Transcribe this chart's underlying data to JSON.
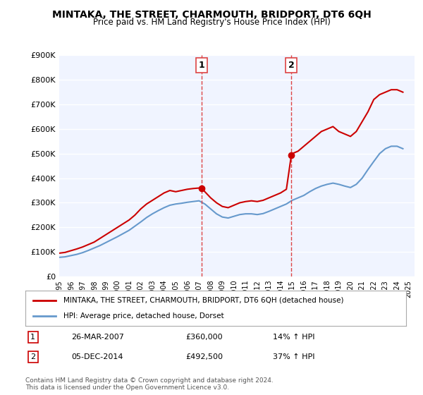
{
  "title": "MINTAKA, THE STREET, CHARMOUTH, BRIDPORT, DT6 6QH",
  "subtitle": "Price paid vs. HM Land Registry's House Price Index (HPI)",
  "background_color": "#ffffff",
  "plot_bg_color": "#f0f4ff",
  "grid_color": "#ffffff",
  "ylabel": "",
  "xlabel": "",
  "ylim": [
    0,
    900000
  ],
  "yticks": [
    0,
    100000,
    200000,
    300000,
    400000,
    500000,
    600000,
    700000,
    800000,
    900000
  ],
  "ytick_labels": [
    "£0",
    "£100K",
    "£200K",
    "£300K",
    "£400K",
    "£500K",
    "£600K",
    "£700K",
    "£800K",
    "£900K"
  ],
  "xlim_start": 1995.0,
  "xlim_end": 2025.5,
  "xtick_years": [
    1995,
    1996,
    1997,
    1998,
    1999,
    2000,
    2001,
    2002,
    2003,
    2004,
    2005,
    2006,
    2007,
    2008,
    2009,
    2010,
    2011,
    2012,
    2013,
    2014,
    2015,
    2016,
    2017,
    2018,
    2019,
    2020,
    2021,
    2022,
    2023,
    2024,
    2025
  ],
  "sale1_x": 2007.23,
  "sale1_y": 360000,
  "sale1_label": "1",
  "sale1_date": "26-MAR-2007",
  "sale1_price": "£360,000",
  "sale1_hpi": "14% ↑ HPI",
  "sale2_x": 2014.92,
  "sale2_y": 492500,
  "sale2_label": "2",
  "sale2_date": "05-DEC-2014",
  "sale2_price": "£492,500",
  "sale2_hpi": "37% ↑ HPI",
  "red_line_color": "#cc0000",
  "blue_line_color": "#6699cc",
  "vline_color": "#dd4444",
  "marker_color": "#cc0000",
  "legend_line1": "MINTAKA, THE STREET, CHARMOUTH, BRIDPORT, DT6 6QH (detached house)",
  "legend_line2": "HPI: Average price, detached house, Dorset",
  "footer": "Contains HM Land Registry data © Crown copyright and database right 2024.\nThis data is licensed under the Open Government Licence v3.0.",
  "red_x": [
    1995.0,
    1995.5,
    1996.0,
    1996.5,
    1997.0,
    1997.5,
    1998.0,
    1998.5,
    1999.0,
    1999.5,
    2000.0,
    2000.5,
    2001.0,
    2001.5,
    2002.0,
    2002.5,
    2003.0,
    2003.5,
    2004.0,
    2004.5,
    2005.0,
    2005.5,
    2006.0,
    2006.5,
    2007.0,
    2007.23,
    2007.5,
    2008.0,
    2008.5,
    2009.0,
    2009.5,
    2010.0,
    2010.5,
    2011.0,
    2011.5,
    2012.0,
    2012.5,
    2013.0,
    2013.5,
    2014.0,
    2014.5,
    2014.92,
    2015.0,
    2015.5,
    2016.0,
    2016.5,
    2017.0,
    2017.5,
    2018.0,
    2018.5,
    2019.0,
    2019.5,
    2020.0,
    2020.5,
    2021.0,
    2021.5,
    2022.0,
    2022.5,
    2023.0,
    2023.5,
    2024.0,
    2024.5
  ],
  "red_y": [
    95000,
    98000,
    105000,
    112000,
    120000,
    130000,
    140000,
    155000,
    170000,
    185000,
    200000,
    215000,
    230000,
    250000,
    275000,
    295000,
    310000,
    325000,
    340000,
    350000,
    345000,
    350000,
    355000,
    358000,
    360000,
    360000,
    345000,
    320000,
    300000,
    285000,
    280000,
    290000,
    300000,
    305000,
    308000,
    305000,
    310000,
    320000,
    330000,
    340000,
    355000,
    492500,
    500000,
    510000,
    530000,
    550000,
    570000,
    590000,
    600000,
    610000,
    590000,
    580000,
    570000,
    590000,
    630000,
    670000,
    720000,
    740000,
    750000,
    760000,
    760000,
    750000
  ],
  "blue_x": [
    1995.0,
    1995.5,
    1996.0,
    1996.5,
    1997.0,
    1997.5,
    1998.0,
    1998.5,
    1999.0,
    1999.5,
    2000.0,
    2000.5,
    2001.0,
    2001.5,
    2002.0,
    2002.5,
    2003.0,
    2003.5,
    2004.0,
    2004.5,
    2005.0,
    2005.5,
    2006.0,
    2006.5,
    2007.0,
    2007.5,
    2008.0,
    2008.5,
    2009.0,
    2009.5,
    2010.0,
    2010.5,
    2011.0,
    2011.5,
    2012.0,
    2012.5,
    2013.0,
    2013.5,
    2014.0,
    2014.5,
    2015.0,
    2015.5,
    2016.0,
    2016.5,
    2017.0,
    2017.5,
    2018.0,
    2018.5,
    2019.0,
    2019.5,
    2020.0,
    2020.5,
    2021.0,
    2021.5,
    2022.0,
    2022.5,
    2023.0,
    2023.5,
    2024.0,
    2024.5
  ],
  "blue_y": [
    78000,
    80000,
    85000,
    90000,
    97000,
    106000,
    116000,
    126000,
    138000,
    150000,
    162000,
    175000,
    188000,
    205000,
    222000,
    240000,
    255000,
    268000,
    280000,
    290000,
    295000,
    298000,
    302000,
    305000,
    308000,
    295000,
    275000,
    255000,
    242000,
    238000,
    245000,
    252000,
    255000,
    255000,
    252000,
    256000,
    265000,
    275000,
    285000,
    295000,
    310000,
    320000,
    330000,
    345000,
    358000,
    368000,
    375000,
    380000,
    375000,
    368000,
    362000,
    375000,
    400000,
    435000,
    468000,
    500000,
    520000,
    530000,
    530000,
    520000
  ]
}
